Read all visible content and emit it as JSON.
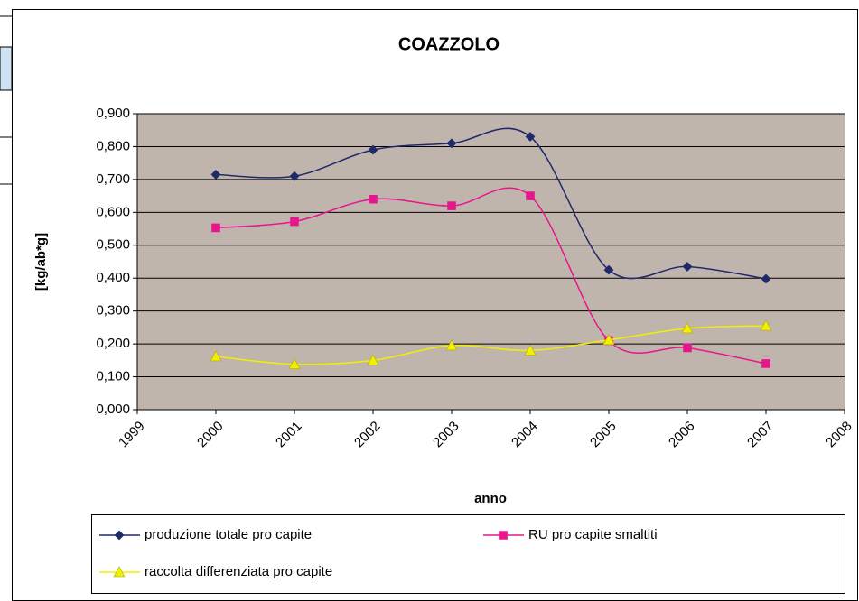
{
  "chart_data": {
    "type": "line",
    "title": "COAZZOLO",
    "x_label": "anno",
    "y_label": "[kg/ab*g]",
    "x": [
      2000,
      2001,
      2002,
      2003,
      2004,
      2005,
      2006,
      2007
    ],
    "xlim": [
      1999,
      2008
    ],
    "xticks": [
      1999,
      2000,
      2001,
      2002,
      2003,
      2004,
      2005,
      2006,
      2007,
      2008
    ],
    "ylim": [
      0,
      0.9
    ],
    "yticks": [
      {
        "value": 0,
        "label": "0,000"
      },
      {
        "value": 0.1,
        "label": "0,100"
      },
      {
        "value": 0.2,
        "label": "0,200"
      },
      {
        "value": 0.3,
        "label": "0,300"
      },
      {
        "value": 0.4,
        "label": "0,400"
      },
      {
        "value": 0.5,
        "label": "0,500"
      },
      {
        "value": 0.6,
        "label": "0,600"
      },
      {
        "value": 0.7,
        "label": "0,700"
      },
      {
        "value": 0.8,
        "label": "0,800"
      },
      {
        "value": 0.9,
        "label": "0,900"
      }
    ],
    "grid": true,
    "smooth": true,
    "legend": "bottom",
    "series": [
      {
        "name": "produzione totale pro capite",
        "color": "#1f2a6b",
        "marker": "diamond",
        "values": [
          0.715,
          0.71,
          0.79,
          0.81,
          0.83,
          0.425,
          0.435,
          0.398
        ]
      },
      {
        "name": "RU pro capite smaltiti",
        "color": "#e8168c",
        "marker": "square",
        "values": [
          0.553,
          0.572,
          0.64,
          0.62,
          0.65,
          0.21,
          0.188,
          0.14
        ]
      },
      {
        "name": "raccolta differenziata pro capite",
        "color": "#f0f000",
        "marker": "triangle",
        "values": [
          0.162,
          0.138,
          0.15,
          0.195,
          0.18,
          0.212,
          0.247,
          0.255
        ]
      }
    ]
  }
}
